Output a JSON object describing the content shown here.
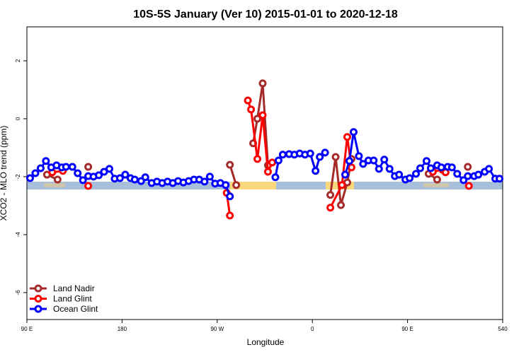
{
  "chart_data": {
    "type": "line",
    "title": "10S-5S January (Ver 10)   2015-01-01 to 2020-12-18",
    "xlabel": "Longitude",
    "ylabel": "XCO2 - MLO trend (ppm)",
    "xlim": [
      90,
      540
    ],
    "ylim": [
      -6.93,
      3.17
    ],
    "xticks": [
      {
        "value": 90,
        "label": "90 E"
      },
      180,
      {
        "value": 270,
        "label": "90 W"
      },
      {
        "value": 360,
        "label": "0"
      },
      {
        "value": 450,
        "label": "90 E"
      },
      540
    ],
    "yticks": [
      -6,
      -4,
      -2,
      0,
      2
    ],
    "legend": "bottom-left",
    "series": [
      {
        "name": "Land Nadir",
        "color": "#a52a2a",
        "x": [
          109,
          119,
          125,
          148,
          200,
          282,
          288,
          295,
          304,
          308,
          313,
          318,
          340,
          377,
          382,
          387,
          393,
          397,
          450,
          470,
          478,
          490,
          507
        ],
        "values": [
          -1.93,
          -2.1,
          null,
          -1.66,
          null,
          -1.59,
          -2.29,
          null,
          -0.85,
          0.0,
          1.22,
          -1.61,
          null,
          -2.63,
          -1.32,
          -2.98,
          -2.2,
          -1.39,
          null,
          -1.9,
          -2.1,
          null,
          -1.66
        ]
      },
      {
        "name": "Land Glint",
        "color": "#ff0000",
        "x": [
          114,
          124,
          135,
          148,
          200,
          279,
          282,
          290,
          299,
          302,
          308,
          313,
          318,
          322,
          350,
          377,
          388,
          393,
          397,
          450,
          474,
          483,
          486,
          500,
          508
        ],
        "values": [
          -1.85,
          -1.8,
          null,
          -2.32,
          null,
          -2.56,
          -3.34,
          null,
          0.63,
          0.32,
          -1.39,
          0.12,
          -1.83,
          -1.51,
          null,
          -3.07,
          -2.29,
          -0.63,
          -1.68,
          null,
          -1.83,
          -1.76,
          -1.85,
          null,
          -2.32
        ]
      },
      {
        "name": "Ocean Glint",
        "color": "#0000ff",
        "x": [
          93,
          98,
          103,
          108,
          113,
          118,
          123,
          127,
          133,
          138,
          143,
          148,
          153,
          158,
          163,
          168,
          173,
          178,
          183,
          188,
          192,
          198,
          202,
          208,
          213,
          218,
          223,
          228,
          233,
          238,
          243,
          248,
          253,
          258,
          263,
          268,
          273,
          278,
          282,
          300,
          325,
          328,
          332,
          338,
          343,
          348,
          353,
          358,
          363,
          367,
          372,
          381,
          391,
          395,
          399,
          404,
          408,
          413,
          418,
          423,
          428,
          433,
          438,
          442,
          448,
          452,
          458,
          462,
          468,
          472,
          478,
          482,
          488,
          492,
          497,
          503,
          507,
          513,
          517,
          523,
          527,
          533,
          537
        ],
        "values": [
          -2.05,
          -1.88,
          -1.71,
          -1.46,
          -1.68,
          -1.61,
          -1.68,
          -1.66,
          -1.66,
          -1.88,
          -2.12,
          -1.98,
          -2.0,
          -1.95,
          -1.83,
          -1.73,
          -2.07,
          -2.05,
          -1.93,
          -2.05,
          -2.1,
          -2.15,
          -2.02,
          -2.22,
          -2.17,
          -2.22,
          -2.17,
          -2.22,
          -2.15,
          -2.2,
          -2.15,
          -2.1,
          -2.1,
          -2.17,
          -2.0,
          -2.24,
          -2.22,
          -2.29,
          -2.68,
          null,
          -2.02,
          -1.44,
          -1.24,
          -1.22,
          -1.24,
          -1.2,
          -1.24,
          -1.2,
          -1.8,
          -1.32,
          -1.17,
          null,
          -1.93,
          -1.46,
          -0.46,
          -1.29,
          -1.56,
          -1.44,
          -1.44,
          -1.73,
          -1.41,
          -1.73,
          -1.98,
          -1.93,
          -2.1,
          -2.05,
          -1.9,
          -1.71,
          -1.46,
          -1.71,
          -1.61,
          -1.68,
          -1.66,
          -1.68,
          -1.9,
          -2.12,
          -1.98,
          -1.98,
          -1.93,
          -1.83,
          -1.73,
          -2.07,
          -2.07
        ]
      }
    ]
  }
}
